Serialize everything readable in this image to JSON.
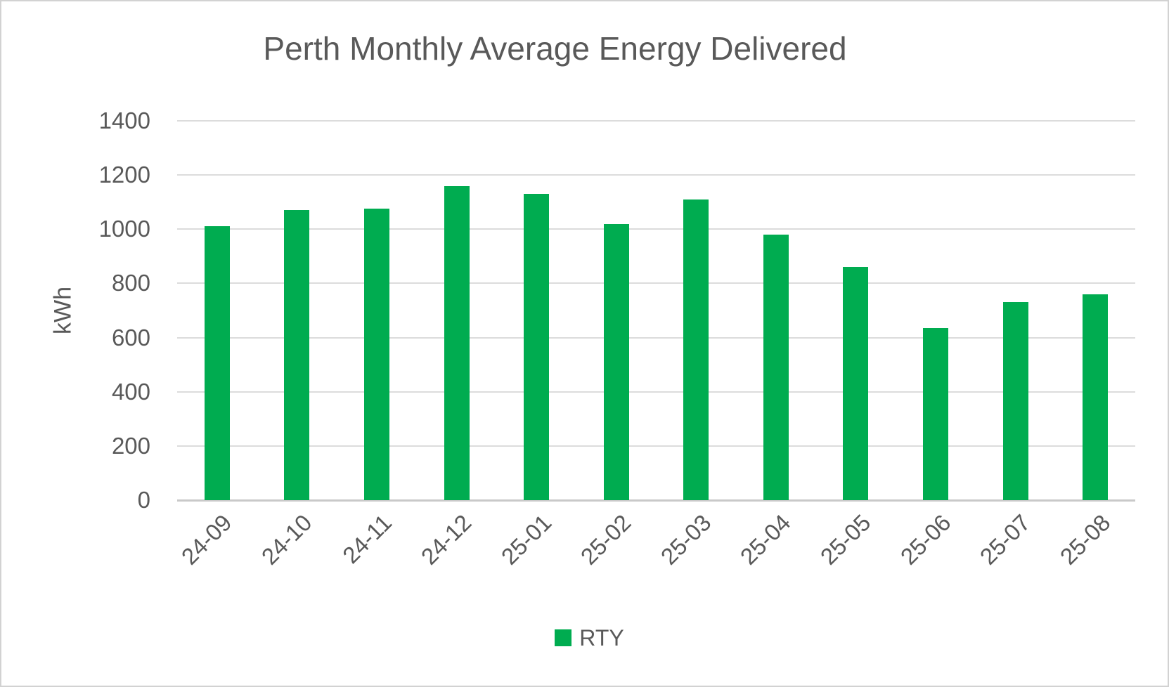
{
  "chart_data": {
    "type": "bar",
    "title": "Perth Monthly Average Energy Delivered",
    "ylabel": "kWh",
    "xlabel": "",
    "categories": [
      "24-09",
      "24-10",
      "24-11",
      "24-12",
      "25-01",
      "25-02",
      "25-03",
      "25-04",
      "25-05",
      "25-06",
      "25-07",
      "25-08"
    ],
    "series": [
      {
        "name": "RTY",
        "values": [
          1010,
          1070,
          1075,
          1160,
          1130,
          1020,
          1110,
          980,
          860,
          635,
          730,
          760
        ]
      }
    ],
    "ylim": [
      0,
      1400
    ],
    "yticks": [
      0,
      200,
      400,
      600,
      800,
      1000,
      1200,
      1400
    ],
    "grid": true,
    "legend_position": "bottom",
    "colors": {
      "bar": "#00ac50",
      "text": "#595959",
      "gridline": "#dcdcdc",
      "axis_line": "#c9c9c9",
      "frame_border": "#d2d2d2"
    }
  }
}
